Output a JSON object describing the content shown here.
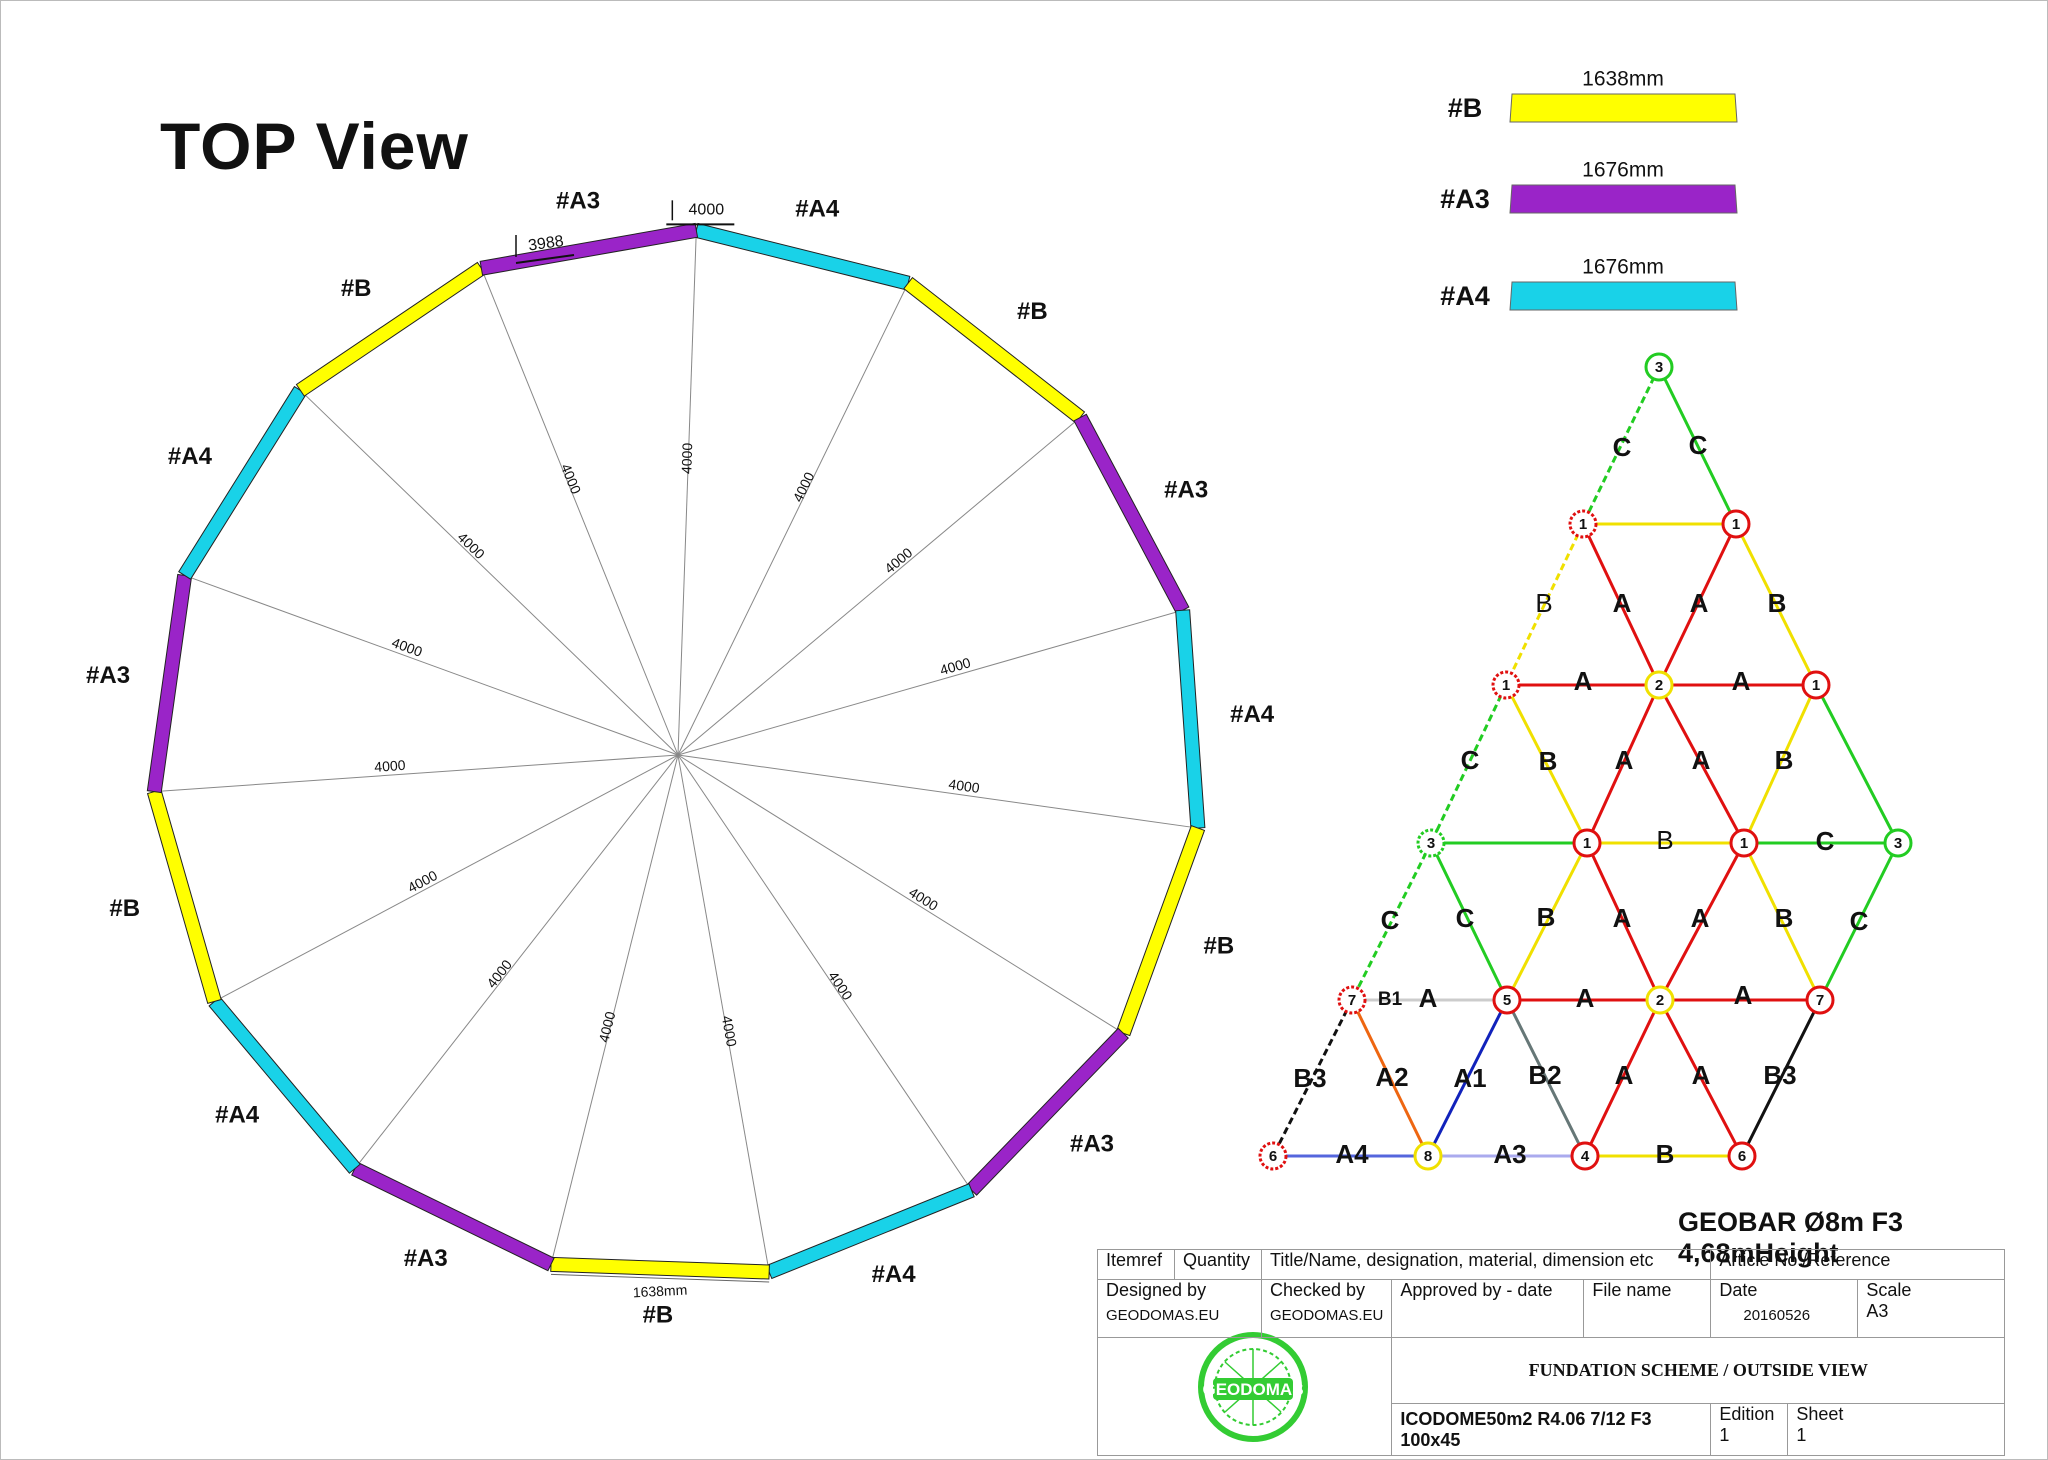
{
  "top_title": "TOP  View",
  "colors": {
    "B": "#ffff00",
    "A3": "#9a24c8",
    "A4": "#19d2e8",
    "red": "#e01010",
    "green": "#22cc22",
    "yellow": "#f0e000"
  },
  "legend": [
    {
      "label": "#B",
      "length": "1638mm",
      "color": "#ffff00"
    },
    {
      "label": "#A3",
      "length": "1676mm",
      "color": "#9a24c8"
    },
    {
      "label": "#A4",
      "length": "1676mm",
      "color": "#19d2e8"
    }
  ],
  "top_view": {
    "radius_label": "4000",
    "segments": [
      "A4",
      "B",
      "A3",
      "A4",
      "B",
      "A3",
      "A4",
      "B",
      "A3",
      "A4",
      "B",
      "A3",
      "A4",
      "B",
      "A3"
    ],
    "segment_labels": [
      "#A4",
      "#B",
      "#A3",
      "#A4",
      "#B",
      "#A3",
      "#A4",
      "#B",
      "#A3",
      "#A4",
      "#B",
      "#A3",
      "#A4",
      "#B",
      "#A3"
    ],
    "dim_top": "4000",
    "dim_inner": "3988",
    "dim_bottom": "1638mm"
  },
  "triangle": {
    "edge_labels": [
      "C",
      "C",
      "B",
      "B",
      "A",
      "A",
      "B",
      "A",
      "A",
      "C",
      "B",
      "A",
      "A",
      "B",
      "C",
      "C",
      "C",
      "C",
      "B",
      "A",
      "A",
      "B",
      "C",
      "C",
      "C",
      "B",
      "A",
      "A",
      "B",
      "C",
      "B1",
      "A",
      "A",
      "B3",
      "A2",
      "A1",
      "B2",
      "A",
      "A",
      "B3",
      "A4",
      "A3",
      "B"
    ],
    "nodes": [
      "3",
      "1",
      "1",
      "1",
      "2",
      "1",
      "3",
      "1",
      "1",
      "3",
      "7",
      "5",
      "2",
      "7",
      "6",
      "8",
      "4",
      "6"
    ]
  },
  "title_block": {
    "subtitle": "GEOBAR Ø8m F3 4,68mHeight",
    "itemref": "Itemref",
    "quantity": "Quantity",
    "title_col": "Title/Name, designation, material, dimension etc",
    "article": "Article No./Reference",
    "designed_by_label": "Designed by",
    "designed_by": "GEODOMAS.EU",
    "checked_by_label": "Checked by",
    "checked_by": "GEODOMAS.EU",
    "approved_label": "Approved by - date",
    "file_label": "File name",
    "date_label": "Date",
    "date": "20160526",
    "scale_label": "Scale",
    "scale": "A3",
    "logo_text": "GEODOMAS",
    "main_title": "FUNDATION SCHEME / OUTSIDE VIEW",
    "drawing": "ICODOME50m2 R4.06 7/12 F3 100x45",
    "edition_label": "Edition",
    "edition": "1",
    "sheet_label": "Sheet",
    "sheet": "1"
  }
}
